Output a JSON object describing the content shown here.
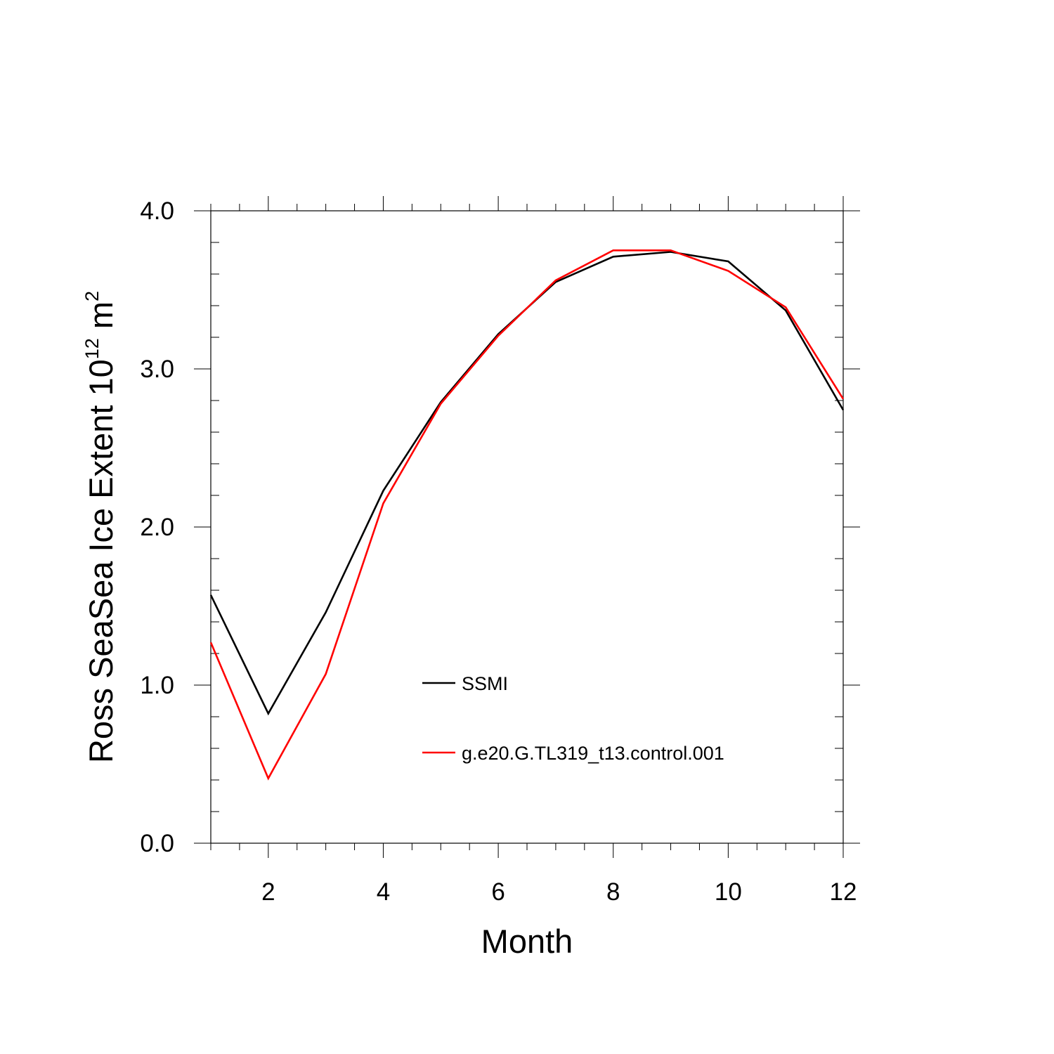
{
  "chart_data": {
    "type": "line",
    "xlabel": "Month",
    "ylabel_main": "Ross SeaSea Ice Extent 10",
    "ylabel_exp": "12",
    "ylabel_unit": " m",
    "ylabel_unit_exp": "2",
    "xlim": [
      1,
      12
    ],
    "ylim": [
      0,
      4
    ],
    "x_ticks": [
      2,
      4,
      6,
      8,
      10,
      12
    ],
    "x_tick_labels": [
      "2",
      "4",
      "6",
      "8",
      "10",
      "12"
    ],
    "y_ticks": [
      0,
      1,
      2,
      3,
      4
    ],
    "y_tick_labels": [
      "0.0",
      "1.0",
      "2.0",
      "3.0",
      "4.0"
    ],
    "x": [
      1,
      2,
      3,
      4,
      5,
      6,
      7,
      8,
      9,
      10,
      11,
      12
    ],
    "series": [
      {
        "name": "SSMI",
        "color": "#000000",
        "values": [
          1.57,
          0.82,
          1.46,
          2.23,
          2.79,
          3.22,
          3.55,
          3.71,
          3.74,
          3.68,
          3.37,
          2.74
        ]
      },
      {
        "name": "g.e20.G.TL319_t13.control.001",
        "color": "#ff0000",
        "values": [
          1.27,
          0.41,
          1.07,
          2.15,
          2.78,
          3.21,
          3.56,
          3.75,
          3.75,
          3.62,
          3.39,
          2.81
        ]
      }
    ],
    "legend_position": "center-right"
  }
}
